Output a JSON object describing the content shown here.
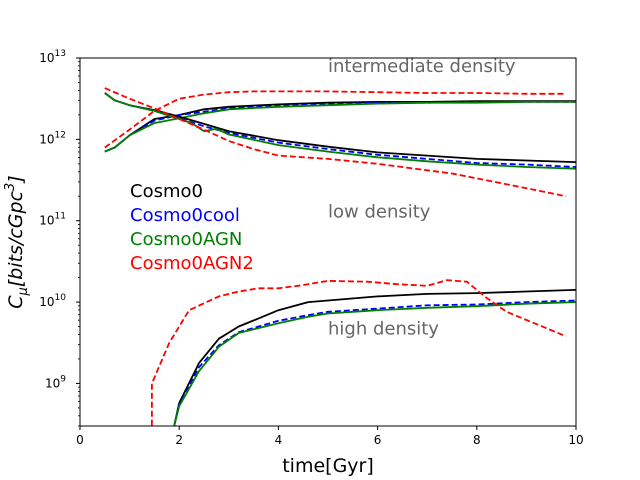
{
  "chart_data": {
    "type": "line",
    "title": "",
    "xlabel": "time[Gyr]",
    "ylabel_main": "C",
    "ylabel_sub": "μ",
    "ylabel_rest": "[bits/cGpc",
    "ylabel_sup": "3",
    "ylabel_end": "]",
    "xlim": [
      0,
      10
    ],
    "ylim_log10": [
      8.477,
      13
    ],
    "yscale": "log",
    "grid": false,
    "legend_placement": "left-middle",
    "xticks": [
      {
        "value": 0,
        "label": "0"
      },
      {
        "value": 2,
        "label": "2"
      },
      {
        "value": 4,
        "label": "4"
      },
      {
        "value": 6,
        "label": "6"
      },
      {
        "value": 8,
        "label": "8"
      },
      {
        "value": 10,
        "label": "10"
      }
    ],
    "yticks": [
      {
        "exp": 9,
        "base": "10",
        "sup": "9"
      },
      {
        "exp": 10,
        "base": "10",
        "sup": "10"
      },
      {
        "exp": 11,
        "base": "10",
        "sup": "11"
      },
      {
        "exp": 12,
        "base": "10",
        "sup": "12"
      },
      {
        "exp": 13,
        "base": "10",
        "sup": "13"
      }
    ],
    "annotations": [
      {
        "text": "intermediate density",
        "x": 5.0,
        "logy": 12.83
      },
      {
        "text": "low density",
        "x": 5.0,
        "logy": 11.04
      },
      {
        "text": "high density",
        "x": 5.0,
        "logy": 9.6
      }
    ],
    "colors": {
      "Cosmo0": "#000000",
      "Cosmo0cool": "#0000ff",
      "Cosmo0AGN": "#008000",
      "Cosmo0AGN2": "#ff0000",
      "annotation": "#666666"
    },
    "series": [
      {
        "name": "Cosmo0",
        "color": "#000000",
        "dash": false,
        "group": "intermediate",
        "x": [
          0.5,
          0.7,
          1.0,
          1.5,
          2.0,
          2.5,
          3.0,
          4.0,
          5.0,
          6.0,
          7.0,
          8.0,
          9.0,
          10.0
        ],
        "logy": [
          11.85,
          11.9,
          12.05,
          12.25,
          12.3,
          12.37,
          12.4,
          12.43,
          12.45,
          12.46,
          12.46,
          12.47,
          12.47,
          12.47
        ]
      },
      {
        "name": "Cosmo0cool",
        "color": "#0000ff",
        "dash": true,
        "group": "intermediate",
        "x": [
          0.5,
          0.7,
          1.0,
          1.5,
          2.0,
          2.5,
          3.0,
          4.0,
          5.0,
          6.0,
          7.0,
          8.0,
          9.0,
          10.0
        ],
        "logy": [
          11.85,
          11.9,
          12.05,
          12.23,
          12.3,
          12.34,
          12.38,
          12.41,
          12.43,
          12.45,
          12.45,
          12.46,
          12.46,
          12.46
        ]
      },
      {
        "name": "Cosmo0AGN",
        "color": "#008000",
        "dash": false,
        "group": "intermediate",
        "x": [
          0.5,
          0.7,
          1.0,
          1.5,
          2.0,
          2.5,
          3.0,
          4.0,
          5.0,
          6.0,
          7.0,
          8.0,
          9.0,
          10.0
        ],
        "logy": [
          11.85,
          11.9,
          12.05,
          12.2,
          12.26,
          12.32,
          12.37,
          12.4,
          12.42,
          12.44,
          12.45,
          12.45,
          12.46,
          12.46
        ]
      },
      {
        "name": "Cosmo0AGN2",
        "color": "#ff0000",
        "dash": true,
        "group": "intermediate",
        "x": [
          0.5,
          1.0,
          1.5,
          2.0,
          2.5,
          3.0,
          3.5,
          4.0,
          5.0,
          6.0,
          7.0,
          8.0,
          9.0,
          9.8
        ],
        "logy": [
          11.9,
          12.12,
          12.35,
          12.5,
          12.55,
          12.58,
          12.59,
          12.59,
          12.59,
          12.58,
          12.57,
          12.57,
          12.56,
          12.56
        ]
      },
      {
        "name": "Cosmo0",
        "color": "#000000",
        "dash": false,
        "group": "low",
        "x": [
          0.5,
          0.7,
          1.0,
          1.5,
          2.0,
          2.5,
          3.0,
          4.0,
          5.0,
          6.0,
          7.0,
          8.0,
          9.0,
          10.0
        ],
        "logy": [
          12.57,
          12.48,
          12.42,
          12.36,
          12.28,
          12.19,
          12.1,
          11.99,
          11.91,
          11.84,
          11.8,
          11.76,
          11.74,
          11.72
        ]
      },
      {
        "name": "Cosmo0cool",
        "color": "#0000ff",
        "dash": true,
        "group": "low",
        "x": [
          0.5,
          0.7,
          1.0,
          1.5,
          2.0,
          2.5,
          3.0,
          4.0,
          5.0,
          6.0,
          7.0,
          8.0,
          9.0,
          10.0
        ],
        "logy": [
          12.57,
          12.48,
          12.42,
          12.35,
          12.26,
          12.16,
          12.08,
          11.96,
          11.88,
          11.81,
          11.76,
          11.71,
          11.69,
          11.66
        ]
      },
      {
        "name": "Cosmo0AGN",
        "color": "#008000",
        "dash": false,
        "group": "low",
        "x": [
          0.5,
          0.7,
          1.0,
          1.5,
          2.0,
          2.25,
          2.5,
          2.75,
          3.0,
          4.0,
          5.0,
          6.0,
          7.0,
          8.0,
          9.0,
          10.0
        ],
        "logy": [
          12.57,
          12.48,
          12.42,
          12.35,
          12.25,
          12.2,
          12.1,
          12.13,
          12.06,
          11.93,
          11.85,
          11.78,
          11.73,
          11.69,
          11.66,
          11.64
        ]
      },
      {
        "name": "Cosmo0AGN2",
        "color": "#ff0000",
        "dash": true,
        "group": "low",
        "x": [
          0.5,
          1.0,
          1.5,
          2.0,
          2.5,
          3.0,
          3.5,
          4.0,
          5.0,
          6.0,
          7.0,
          7.5,
          8.0,
          8.5,
          9.0,
          9.8
        ],
        "logy": [
          12.63,
          12.5,
          12.38,
          12.25,
          12.12,
          11.98,
          11.88,
          11.8,
          11.76,
          11.7,
          11.62,
          11.58,
          11.52,
          11.46,
          11.4,
          11.3
        ]
      },
      {
        "name": "Cosmo0",
        "color": "#000000",
        "dash": false,
        "group": "high",
        "x": [
          1.9,
          2.0,
          2.4,
          2.8,
          3.2,
          3.6,
          4.0,
          4.6,
          5.0,
          6.0,
          7.0,
          8.0,
          9.0,
          10.0
        ],
        "logy": [
          8.48,
          8.76,
          9.25,
          9.55,
          9.7,
          9.8,
          9.9,
          10.0,
          10.02,
          10.07,
          10.1,
          10.11,
          10.13,
          10.15
        ]
      },
      {
        "name": "Cosmo0cool",
        "color": "#0000ff",
        "dash": true,
        "group": "high",
        "x": [
          1.9,
          2.0,
          2.4,
          2.8,
          3.2,
          3.6,
          4.0,
          4.6,
          5.0,
          6.0,
          7.0,
          8.0,
          9.0,
          10.0
        ],
        "logy": [
          8.48,
          8.74,
          9.2,
          9.47,
          9.63,
          9.7,
          9.77,
          9.84,
          9.88,
          9.92,
          9.96,
          9.97,
          10.0,
          10.02
        ]
      },
      {
        "name": "Cosmo0AGN",
        "color": "#008000",
        "dash": false,
        "group": "high",
        "x": [
          1.9,
          2.0,
          2.4,
          2.8,
          3.2,
          3.6,
          4.0,
          4.6,
          5.0,
          6.0,
          7.0,
          8.0,
          9.0,
          10.0
        ],
        "logy": [
          8.48,
          8.72,
          9.15,
          9.45,
          9.62,
          9.68,
          9.74,
          9.82,
          9.86,
          9.9,
          9.93,
          9.95,
          9.98,
          10.0
        ]
      },
      {
        "name": "Cosmo0AGN2",
        "color": "#ff0000",
        "dash": true,
        "group": "high",
        "x": [
          1.45,
          1.45,
          1.8,
          2.2,
          2.8,
          3.2,
          3.6,
          4.0,
          4.4,
          5.0,
          5.8,
          6.4,
          7.0,
          7.4,
          7.8,
          8.2,
          8.6,
          9.0,
          9.4,
          9.8
        ],
        "logy": [
          8.48,
          9.0,
          9.5,
          9.9,
          10.07,
          10.13,
          10.17,
          10.17,
          10.2,
          10.26,
          10.25,
          10.22,
          10.2,
          10.27,
          10.25,
          10.05,
          9.88,
          9.78,
          9.68,
          9.58
        ]
      }
    ],
    "legend": [
      {
        "label": "Cosmo0",
        "color": "#000000"
      },
      {
        "label": "Cosmo0cool",
        "color": "#0000ff"
      },
      {
        "label": "Cosmo0AGN",
        "color": "#008000"
      },
      {
        "label": "Cosmo0AGN2",
        "color": "#ff0000"
      }
    ]
  }
}
